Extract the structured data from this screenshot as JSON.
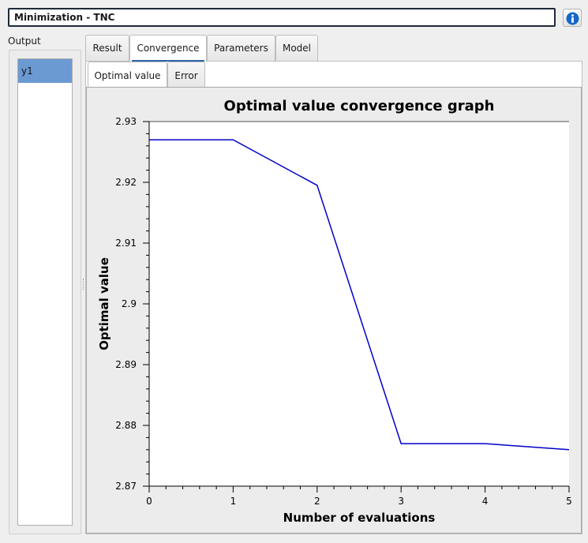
{
  "window": {
    "title": "Minimization - TNC"
  },
  "icons": {
    "info": "info-icon",
    "info_color": "#1767c6"
  },
  "output": {
    "label": "Output",
    "items": [
      {
        "label": "y1",
        "selected": true
      }
    ],
    "selected_color": "#6b9ad2"
  },
  "tabs": [
    {
      "label": "Result",
      "active": false
    },
    {
      "label": "Convergence",
      "active": true
    },
    {
      "label": "Parameters",
      "active": false
    },
    {
      "label": "Model",
      "active": false
    }
  ],
  "subtabs": [
    {
      "label": "Optimal value",
      "active": true
    },
    {
      "label": "Error",
      "active": false
    }
  ],
  "chart_data": {
    "type": "line",
    "title": "Optimal value convergence graph",
    "xlabel": "Number of evaluations",
    "ylabel": "Optimal value",
    "xlim": [
      0,
      5
    ],
    "ylim": [
      2.87,
      2.93
    ],
    "x_ticks": [
      0,
      1,
      2,
      3,
      4,
      5
    ],
    "x_tick_labels": [
      "0",
      "1",
      "2",
      "3",
      "4",
      "5"
    ],
    "y_ticks": [
      2.87,
      2.88,
      2.89,
      2.9,
      2.91,
      2.92,
      2.93
    ],
    "y_tick_labels": [
      "2.87",
      "2.88",
      "2.89",
      "2.9",
      "2.91",
      "2.92",
      "2.93"
    ],
    "grid": false,
    "series": [
      {
        "color": "#0000c8",
        "x": [
          0,
          1,
          2,
          3,
          4,
          5
        ],
        "y": [
          2.927,
          2.927,
          2.9195,
          2.877,
          2.877,
          2.876
        ]
      }
    ]
  }
}
